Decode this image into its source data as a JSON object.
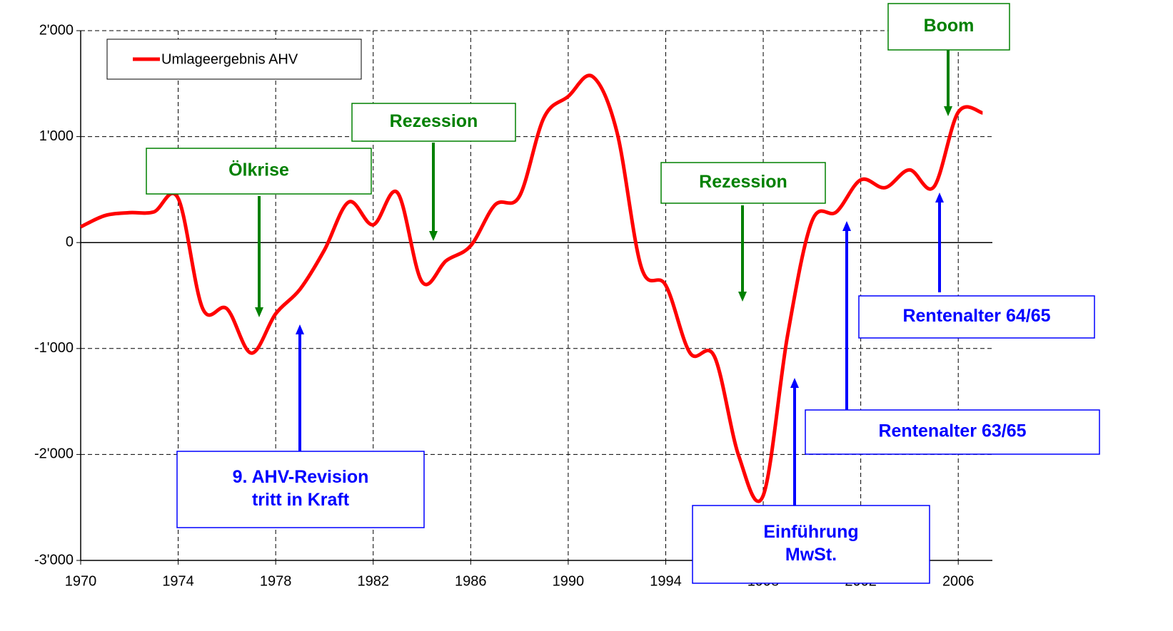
{
  "chart_data": {
    "type": "line",
    "x": [
      1970,
      1971,
      1972,
      1973,
      1974,
      1975,
      1976,
      1977,
      1978,
      1979,
      1980,
      1981,
      1982,
      1983,
      1984,
      1985,
      1986,
      1987,
      1988,
      1989,
      1990,
      1991,
      1992,
      1993,
      1994,
      1995,
      1996,
      1997,
      1998,
      1999,
      2000,
      2001,
      2002,
      2003,
      2004,
      2005,
      2006,
      2007
    ],
    "series": [
      {
        "name": "Umlageergebnis AHV",
        "color": "#ff0000",
        "values": [
          148,
          255,
          282,
          289,
          417,
          -620,
          -625,
          -1043,
          -672,
          -440,
          -70,
          383,
          168,
          470,
          -370,
          -170,
          -30,
          356,
          437,
          1177,
          1379,
          1567,
          1042,
          -235,
          -403,
          -1043,
          -1076,
          -2017,
          -2387,
          -874,
          202,
          289,
          592,
          518,
          686,
          525,
          1230,
          1224
        ]
      }
    ],
    "xlim": [
      1970,
      2007.4
    ],
    "xticks": [
      1970,
      1974,
      1978,
      1982,
      1986,
      1990,
      1994,
      1998,
      2002,
      2006
    ],
    "ylim": [
      -3000,
      2000
    ],
    "yticks": [
      {
        "value": -3000,
        "label": "-3'000"
      },
      {
        "value": -2000,
        "label": "-2'000"
      },
      {
        "value": -1000,
        "label": "-1'000"
      },
      0,
      {
        "value": 1000,
        "label": "1'000"
      },
      {
        "value": 2000,
        "label": "2'000"
      }
    ],
    "grid": true,
    "legend": "upper left",
    "annotations": [
      {
        "text": [
          "Ölkrise"
        ],
        "color": "#008000"
      },
      {
        "text": [
          "Rezession"
        ],
        "color": "#008000"
      },
      {
        "text": [
          "Rezession"
        ],
        "color": "#008000"
      },
      {
        "text": [
          "Boom"
        ],
        "color": "#008000"
      },
      {
        "text": [
          "9. AHV-Revision",
          "tritt in Kraft"
        ],
        "color": "#0000ff"
      },
      {
        "text": [
          "Einführung",
          "MwSt."
        ],
        "color": "#0000ff"
      },
      {
        "text": [
          "Rentenalter 63/65"
        ],
        "color": "#0000ff"
      },
      {
        "text": [
          "Rentenalter 64/65"
        ],
        "color": "#0000ff"
      }
    ]
  }
}
